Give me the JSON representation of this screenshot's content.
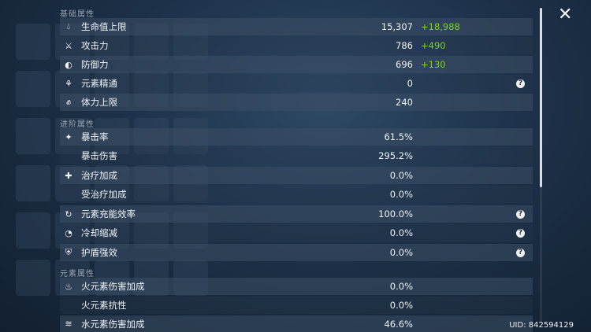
{
  "sections": {
    "basic": "基础属性",
    "advanced": "进阶属性",
    "elemental": "元素属性"
  },
  "stats": {
    "hp": {
      "label": "生命值上限",
      "value": "15,307",
      "bonus": "+18,988",
      "icon": "hp-drop-icon"
    },
    "atk": {
      "label": "攻击力",
      "value": "786",
      "bonus": "+490",
      "icon": "sword-icon"
    },
    "def": {
      "label": "防御力",
      "value": "696",
      "bonus": "+130",
      "icon": "shield-icon"
    },
    "em": {
      "label": "元素精通",
      "value": "0",
      "icon": "elemental-mastery-icon"
    },
    "stamina": {
      "label": "体力上限",
      "value": "240",
      "icon": "stamina-icon"
    },
    "crit_rate": {
      "label": "暴击率",
      "value": "61.5%",
      "icon": "crit-icon"
    },
    "crit_dmg": {
      "label": "暴击伤害",
      "value": "295.2%"
    },
    "healing": {
      "label": "治疗加成",
      "value": "0.0%",
      "icon": "healing-cross-icon"
    },
    "incoming_healing": {
      "label": "受治疗加成",
      "value": "0.0%"
    },
    "er": {
      "label": "元素充能效率",
      "value": "100.0%",
      "icon": "energy-recharge-icon"
    },
    "cd_reduction": {
      "label": "冷却缩减",
      "value": "0.0%",
      "icon": "cooldown-icon"
    },
    "shield_strength": {
      "label": "护盾强效",
      "value": "0.0%",
      "icon": "shield-strength-icon"
    },
    "pyro_dmg": {
      "label": "火元素伤害加成",
      "value": "0.0%",
      "icon": "pyro-icon"
    },
    "pyro_res": {
      "label": "火元素抗性",
      "value": "0.0%"
    },
    "hydro_dmg": {
      "label": "水元素伤害加成",
      "value": "46.6%",
      "icon": "hydro-icon"
    }
  },
  "help_glyph": "?",
  "close_glyph": "✕",
  "uid": "UID: 842594129",
  "colors": {
    "bonus": "#7ed321",
    "row_bg": "#3c4e64"
  }
}
